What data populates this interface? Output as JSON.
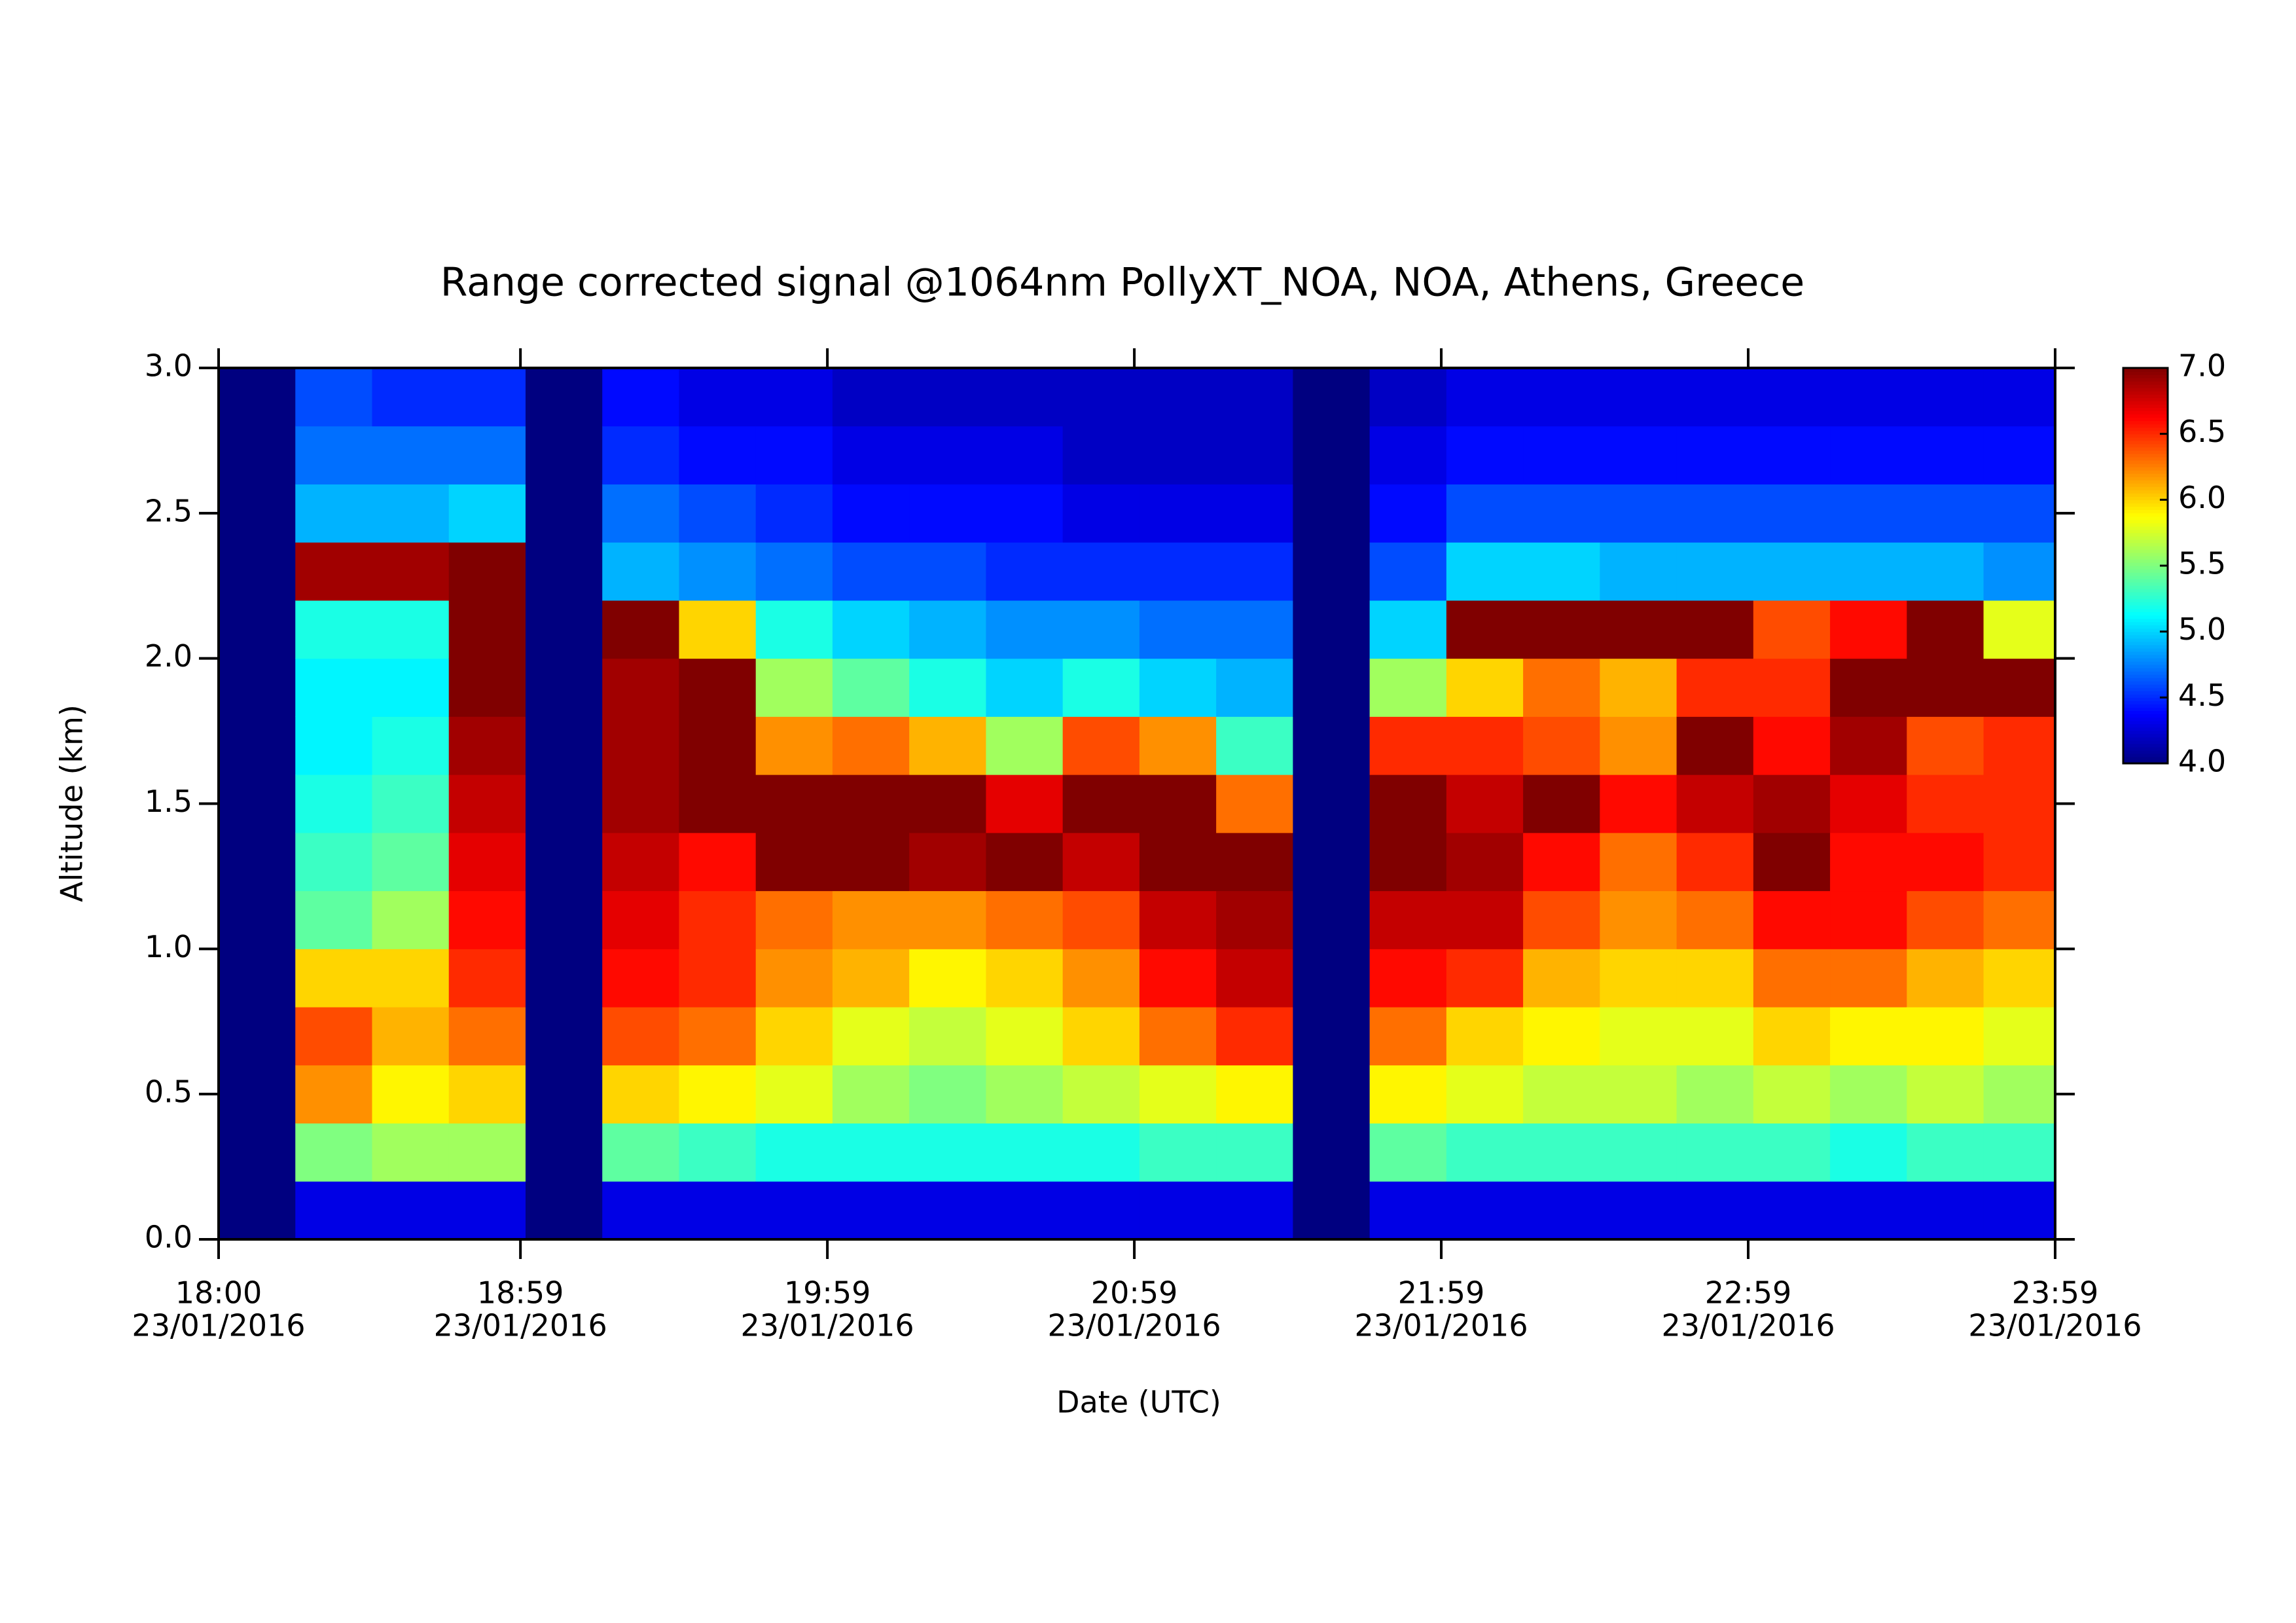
{
  "chart_data": {
    "type": "heatmap",
    "title": "Range corrected signal @1064nm  PollyXT_NOA, NOA, Athens, Greece",
    "x_label": "Date (UTC)",
    "y_label": "Altitude (km)",
    "x": [
      "18:00",
      "18:15",
      "18:30",
      "18:45",
      "19:00",
      "19:15",
      "19:30",
      "19:45",
      "20:00",
      "20:15",
      "20:30",
      "20:45",
      "21:00",
      "21:15",
      "21:30",
      "21:45",
      "22:00",
      "22:15",
      "22:30",
      "22:45",
      "23:00",
      "23:15",
      "23:30",
      "23:45"
    ],
    "y": [
      0,
      0.2,
      0.4,
      0.6,
      0.8,
      1.0,
      1.2,
      1.4,
      1.6,
      1.8,
      2.0,
      2.2,
      2.4,
      2.6,
      2.8
    ],
    "xlim": [
      "18:00",
      "23:59"
    ],
    "ylim": [
      0,
      3
    ],
    "xticks": [
      {
        "value": "18:00",
        "label": [
          "18:00",
          "23/01/2016"
        ]
      },
      {
        "value": "18:59",
        "label": [
          "18:59",
          "23/01/2016"
        ]
      },
      {
        "value": "19:59",
        "label": [
          "19:59",
          "23/01/2016"
        ]
      },
      {
        "value": "20:59",
        "label": [
          "20:59",
          "23/01/2016"
        ]
      },
      {
        "value": "21:59",
        "label": [
          "21:59",
          "23/01/2016"
        ]
      },
      {
        "value": "22:59",
        "label": [
          "22:59",
          "23/01/2016"
        ]
      },
      {
        "value": "23:59",
        "label": [
          "23:59",
          "23/01/2016"
        ]
      }
    ],
    "yticks": [
      {
        "value": 0,
        "label": "0.0"
      },
      0.5,
      {
        "value": 1,
        "label": "1.0"
      },
      1.5,
      {
        "value": 2,
        "label": "2.0"
      },
      2.5,
      {
        "value": 3,
        "label": "3.0"
      }
    ],
    "colormap": "jet",
    "zlim": [
      4,
      7
    ],
    "zticks": [
      {
        "value": 4,
        "label": "4.0"
      },
      4.5,
      {
        "value": 5,
        "label": "5.0"
      },
      5.5,
      {
        "value": 6,
        "label": "6.0"
      },
      6.5,
      {
        "value": 7,
        "label": "7.0"
      }
    ],
    "z": [
      [
        4.0,
        4.0,
        4.0,
        4.0,
        4.0,
        4.0,
        4.0,
        4.0,
        4.0,
        4.0,
        4.0,
        4.0,
        4.0,
        4.0,
        4.0
      ],
      [
        4.3,
        5.5,
        6.2,
        6.4,
        6.0,
        5.4,
        5.3,
        5.2,
        5.1,
        5.1,
        5.2,
        6.9,
        4.9,
        4.7,
        4.6
      ],
      [
        4.3,
        5.6,
        5.9,
        6.1,
        6.0,
        5.6,
        5.4,
        5.3,
        5.2,
        5.1,
        5.2,
        6.9,
        4.9,
        4.7,
        4.5
      ],
      [
        4.3,
        5.6,
        6.0,
        6.3,
        6.5,
        6.6,
        6.7,
        6.8,
        6.9,
        7.0,
        7.0,
        7.0,
        5.0,
        4.7,
        4.5
      ],
      [
        4.0,
        4.0,
        4.0,
        4.0,
        4.0,
        4.0,
        4.0,
        4.0,
        4.0,
        4.0,
        4.0,
        4.0,
        4.0,
        4.0,
        4.0
      ],
      [
        4.3,
        5.4,
        6.0,
        6.4,
        6.6,
        6.7,
        6.8,
        6.9,
        6.9,
        6.9,
        7.0,
        4.9,
        4.7,
        4.5,
        4.4
      ],
      [
        4.3,
        5.3,
        5.9,
        6.3,
        6.5,
        6.5,
        6.6,
        7.0,
        7.0,
        7.0,
        6.0,
        4.8,
        4.6,
        4.4,
        4.3
      ],
      [
        4.3,
        5.2,
        5.8,
        6.0,
        6.2,
        6.3,
        7.0,
        7.0,
        6.2,
        5.6,
        5.2,
        4.7,
        4.5,
        4.4,
        4.3
      ],
      [
        4.3,
        5.2,
        5.6,
        5.8,
        6.1,
        6.2,
        7.0,
        7.0,
        6.3,
        5.4,
        5.0,
        4.6,
        4.4,
        4.3,
        4.2
      ],
      [
        4.3,
        5.2,
        5.5,
        5.7,
        5.9,
        6.2,
        6.9,
        7.0,
        6.1,
        5.2,
        4.9,
        4.6,
        4.4,
        4.3,
        4.2
      ],
      [
        4.3,
        5.2,
        5.6,
        5.8,
        6.0,
        6.3,
        7.0,
        6.7,
        5.6,
        5.0,
        4.8,
        4.5,
        4.4,
        4.3,
        4.2
      ],
      [
        4.3,
        5.2,
        5.7,
        6.0,
        6.2,
        6.4,
        6.8,
        7.0,
        6.4,
        5.2,
        4.8,
        4.5,
        4.3,
        4.2,
        4.2
      ],
      [
        4.3,
        5.3,
        5.8,
        6.3,
        6.6,
        6.8,
        7.0,
        7.0,
        6.2,
        5.0,
        4.7,
        4.5,
        4.3,
        4.2,
        4.2
      ],
      [
        4.3,
        5.3,
        5.9,
        6.5,
        6.8,
        6.9,
        7.0,
        6.3,
        5.3,
        4.9,
        4.7,
        4.5,
        4.3,
        4.2,
        4.2
      ],
      [
        4.0,
        4.0,
        4.0,
        4.0,
        4.0,
        4.0,
        4.0,
        4.0,
        4.0,
        4.0,
        4.0,
        4.0,
        4.0,
        4.0,
        4.0
      ],
      [
        4.3,
        5.4,
        5.9,
        6.3,
        6.6,
        6.8,
        7.0,
        7.0,
        6.5,
        5.6,
        5.0,
        4.6,
        4.4,
        4.3,
        4.2
      ],
      [
        4.3,
        5.3,
        5.8,
        6.0,
        6.5,
        6.8,
        6.9,
        6.8,
        6.5,
        6.0,
        7.0,
        5.0,
        4.6,
        4.4,
        4.3
      ],
      [
        4.3,
        5.3,
        5.7,
        5.9,
        6.1,
        6.4,
        6.6,
        7.0,
        6.4,
        6.3,
        7.0,
        5.0,
        4.6,
        4.4,
        4.3
      ],
      [
        4.3,
        5.3,
        5.7,
        5.8,
        6.0,
        6.2,
        6.3,
        6.6,
        6.2,
        6.1,
        7.0,
        4.9,
        4.6,
        4.4,
        4.3
      ],
      [
        4.3,
        5.3,
        5.6,
        5.8,
        6.0,
        6.3,
        6.5,
        6.8,
        7.0,
        6.5,
        7.0,
        4.9,
        4.6,
        4.4,
        4.3
      ],
      [
        4.3,
        5.3,
        5.7,
        6.0,
        6.3,
        6.6,
        7.0,
        6.9,
        6.6,
        6.5,
        6.4,
        4.9,
        4.6,
        4.4,
        4.3
      ],
      [
        4.3,
        5.2,
        5.6,
        5.9,
        6.3,
        6.6,
        6.6,
        6.7,
        6.9,
        7.0,
        6.6,
        4.9,
        4.6,
        4.4,
        4.3
      ],
      [
        4.3,
        5.3,
        5.7,
        5.9,
        6.1,
        6.4,
        6.6,
        6.5,
        6.4,
        7.0,
        7.0,
        4.9,
        4.6,
        4.4,
        4.3
      ],
      [
        4.3,
        5.3,
        5.6,
        5.8,
        6.0,
        6.3,
        6.5,
        6.5,
        6.5,
        7.0,
        5.8,
        4.8,
        4.6,
        4.4,
        4.3
      ]
    ]
  }
}
